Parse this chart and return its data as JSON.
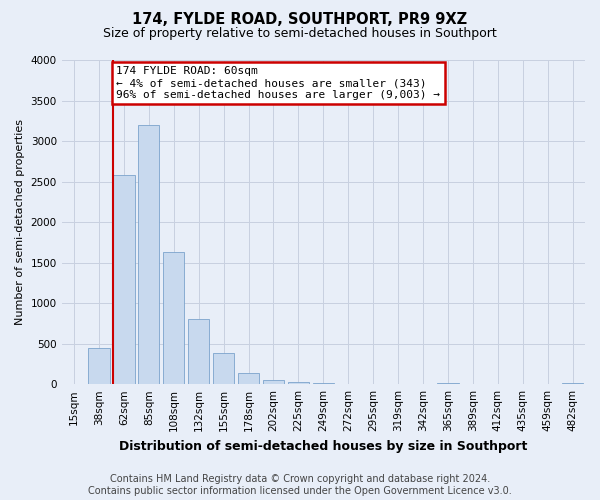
{
  "title": "174, FYLDE ROAD, SOUTHPORT, PR9 9XZ",
  "subtitle": "Size of property relative to semi-detached houses in Southport",
  "xlabel": "Distribution of semi-detached houses by size in Southport",
  "ylabel": "Number of semi-detached properties",
  "footer": "Contains HM Land Registry data © Crown copyright and database right 2024.\nContains public sector information licensed under the Open Government Licence v3.0.",
  "bin_labels": [
    "15sqm",
    "38sqm",
    "62sqm",
    "85sqm",
    "108sqm",
    "132sqm",
    "155sqm",
    "178sqm",
    "202sqm",
    "225sqm",
    "249sqm",
    "272sqm",
    "295sqm",
    "319sqm",
    "342sqm",
    "365sqm",
    "389sqm",
    "412sqm",
    "435sqm",
    "459sqm",
    "482sqm"
  ],
  "bar_values": [
    5,
    450,
    2580,
    3200,
    1630,
    800,
    390,
    140,
    50,
    25,
    20,
    0,
    0,
    0,
    0,
    15,
    0,
    0,
    0,
    0,
    10
  ],
  "bar_color": "#c8d9ee",
  "bar_edgecolor": "#7ba3cc",
  "highlight_bin_index": 2,
  "highlight_line_color": "#cc0000",
  "annotation_line1": "174 FYLDE ROAD: 60sqm",
  "annotation_line2": "← 4% of semi-detached houses are smaller (343)",
  "annotation_line3": "96% of semi-detached houses are larger (9,003) →",
  "annotation_box_facecolor": "#ffffff",
  "annotation_box_edgecolor": "#cc0000",
  "ylim": [
    0,
    4000
  ],
  "yticks": [
    0,
    500,
    1000,
    1500,
    2000,
    2500,
    3000,
    3500,
    4000
  ],
  "grid_color": "#c8d0e0",
  "bg_color": "#e8eef8",
  "title_fontsize": 10.5,
  "subtitle_fontsize": 9,
  "ylabel_fontsize": 8,
  "xlabel_fontsize": 9,
  "tick_fontsize": 7.5,
  "footer_fontsize": 7,
  "annotation_fontsize": 8
}
